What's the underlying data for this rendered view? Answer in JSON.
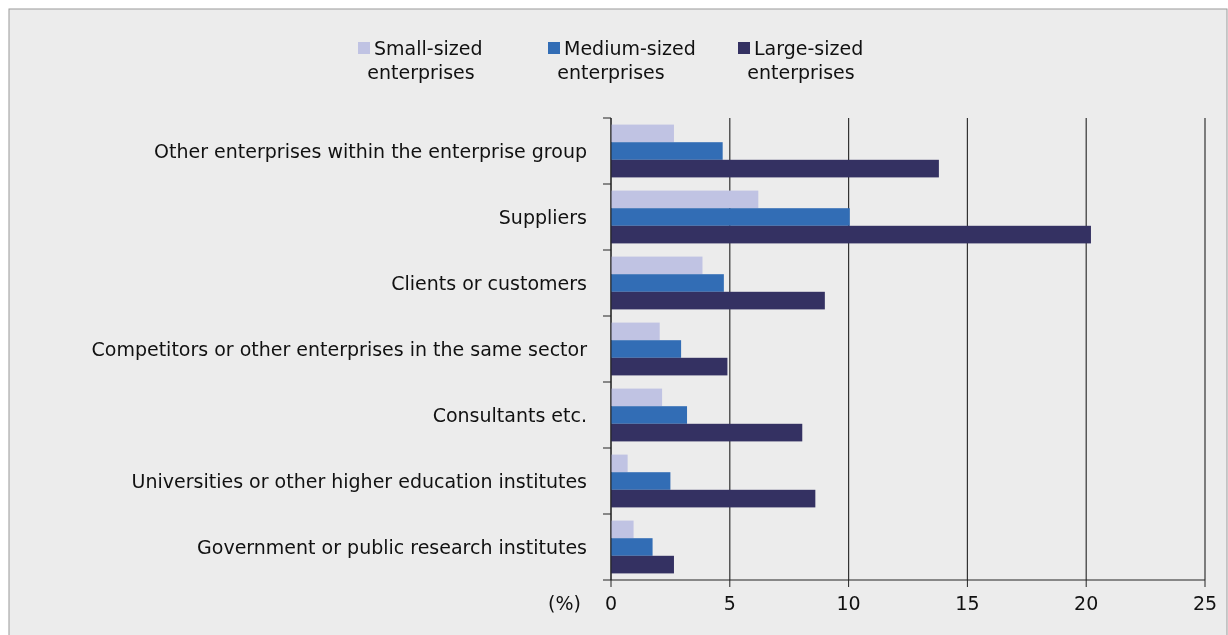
{
  "chart_data": {
    "type": "bar",
    "orientation": "horizontal",
    "xlabel": "(%)",
    "categories": [
      "Other enterprises within the enterprise group",
      "Suppliers",
      "Clients or customers",
      "Competitors or other enterprises in the same sector",
      "Consultants etc.",
      "Universities or other higher education institutes",
      "Government or public research institutes"
    ],
    "series": [
      {
        "name": "Small-sized enterprises",
        "color": "#c0c3e3",
        "values": [
          2.65,
          6.2,
          3.85,
          2.05,
          2.15,
          0.7,
          0.95
        ]
      },
      {
        "name": "Medium-sized enterprises",
        "color": "#326db5",
        "values": [
          4.7,
          10.05,
          4.75,
          2.95,
          3.2,
          2.5,
          1.75
        ]
      },
      {
        "name": "Large-sized enterprises",
        "color": "#343162",
        "values": [
          13.8,
          20.2,
          9.0,
          4.9,
          8.05,
          8.6,
          2.65
        ]
      }
    ],
    "xlim": [
      0,
      25
    ],
    "xticks": [
      0,
      5,
      10,
      15,
      20,
      25
    ],
    "grid": "x",
    "legend": "top"
  }
}
